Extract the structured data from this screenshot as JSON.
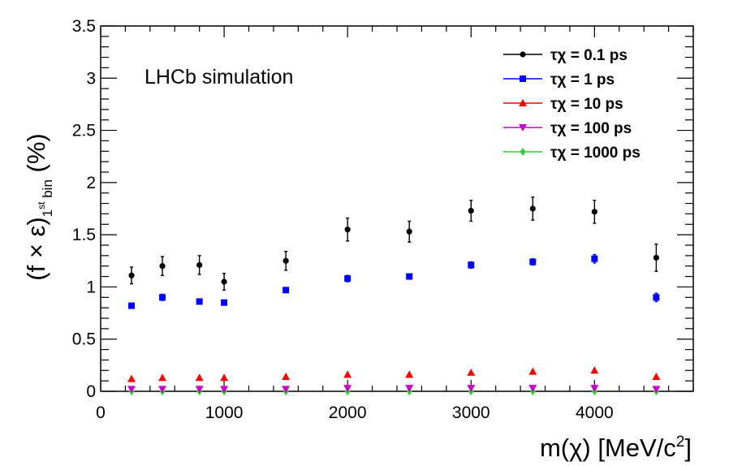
{
  "chart_data": {
    "type": "scatter",
    "annotation": "LHCb simulation",
    "xlabel": "m(χ) [MeV/c²]",
    "ylabel": "(f × ε) 1st bin (%)",
    "xlim": [
      0,
      4800
    ],
    "ylim": [
      0,
      3.5
    ],
    "x_ticks": [
      0,
      1000,
      2000,
      3000,
      4000
    ],
    "y_ticks": [
      0,
      0.5,
      1,
      1.5,
      2,
      2.5,
      3,
      3.5
    ],
    "grid": false,
    "legend_position": "top-right",
    "x": [
      250,
      500,
      800,
      1000,
      1500,
      2000,
      2500,
      3000,
      3500,
      4000,
      4500
    ],
    "series": [
      {
        "name": "τχ = 0.1 ps",
        "color": "#000000",
        "marker": "circle",
        "values": [
          1.11,
          1.2,
          1.21,
          1.05,
          1.25,
          1.55,
          1.53,
          1.73,
          1.75,
          1.72,
          1.28
        ],
        "errors": [
          0.08,
          0.09,
          0.09,
          0.08,
          0.09,
          0.11,
          0.1,
          0.1,
          0.11,
          0.11,
          0.13
        ]
      },
      {
        "name": "τχ = 1 ps",
        "color": "#0000ff",
        "marker": "square",
        "values": [
          0.82,
          0.9,
          0.86,
          0.85,
          0.97,
          1.08,
          1.1,
          1.21,
          1.24,
          1.27,
          0.9
        ],
        "errors": [
          0.02,
          0.03,
          0.02,
          0.02,
          0.02,
          0.03,
          0.02,
          0.03,
          0.03,
          0.04,
          0.04
        ]
      },
      {
        "name": "τχ = 10 ps",
        "color": "#ff0000",
        "marker": "triangle-up",
        "values": [
          0.12,
          0.13,
          0.13,
          0.13,
          0.14,
          0.16,
          0.16,
          0.18,
          0.19,
          0.2,
          0.14
        ],
        "errors": [
          0,
          0,
          0,
          0,
          0,
          0,
          0,
          0,
          0,
          0,
          0
        ]
      },
      {
        "name": "τχ = 100 ps",
        "color": "#cc00cc",
        "marker": "triangle-down",
        "values": [
          0.02,
          0.02,
          0.02,
          0.02,
          0.02,
          0.03,
          0.03,
          0.03,
          0.03,
          0.03,
          0.02
        ],
        "errors": [
          0,
          0,
          0,
          0,
          0,
          0,
          0,
          0,
          0,
          0,
          0
        ]
      },
      {
        "name": "τχ = 1000 ps",
        "color": "#33cc33",
        "marker": "diamond",
        "values": [
          0.0,
          0.0,
          0.0,
          0.0,
          0.0,
          0.0,
          0.0,
          0.0,
          0.0,
          0.0,
          0.0
        ],
        "errors": [
          0,
          0,
          0,
          0,
          0,
          0,
          0,
          0,
          0,
          0,
          0
        ]
      }
    ]
  }
}
